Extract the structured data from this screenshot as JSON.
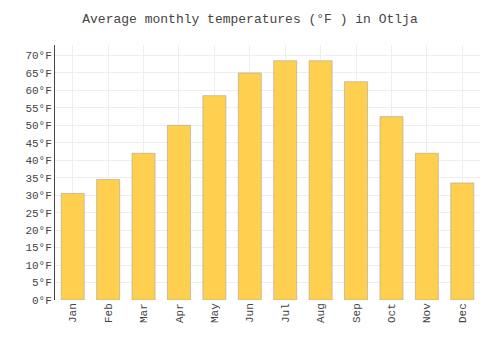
{
  "chart_data": {
    "type": "bar",
    "title": "Average monthly temperatures (°F ) in Otlja",
    "categories": [
      "Jan",
      "Feb",
      "Mar",
      "Apr",
      "May",
      "Jun",
      "Jul",
      "Aug",
      "Sep",
      "Oct",
      "Nov",
      "Dec"
    ],
    "values": [
      30.5,
      34.5,
      42.0,
      50.0,
      58.5,
      65.0,
      68.5,
      68.5,
      62.5,
      52.5,
      42.0,
      33.5
    ],
    "color": "#FFD050",
    "ylim": [
      0,
      73
    ],
    "yticks": [
      {
        "value": 0,
        "label": "0°F"
      },
      {
        "value": 5,
        "label": "5°F"
      },
      {
        "value": 10,
        "label": "10°F"
      },
      {
        "value": 15,
        "label": "15°F"
      },
      {
        "value": 20,
        "label": "20°F"
      },
      {
        "value": 25,
        "label": "25°F"
      },
      {
        "value": 30,
        "label": "30°F"
      },
      {
        "value": 35,
        "label": "35°F"
      },
      {
        "value": 40,
        "label": "40°F"
      },
      {
        "value": 45,
        "label": "45°F"
      },
      {
        "value": 50,
        "label": "50°F"
      },
      {
        "value": 55,
        "label": "55°F"
      },
      {
        "value": 60,
        "label": "60°F"
      },
      {
        "value": 65,
        "label": "65°F"
      },
      {
        "value": 70,
        "label": "70°F"
      }
    ],
    "grid": true
  }
}
